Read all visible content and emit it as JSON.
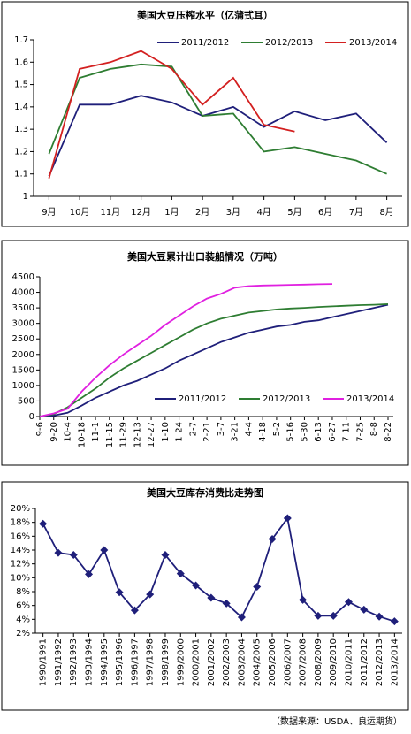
{
  "chart_data": [
    {
      "type": "line",
      "title": "美国大豆压榨水平（亿蒲式耳）",
      "categories": [
        "9月",
        "10月",
        "11月",
        "12月",
        "1月",
        "2月",
        "3月",
        "4月",
        "5月",
        "6月",
        "7月",
        "8月"
      ],
      "series": [
        {
          "name": "2011/2012",
          "color": "#1f1f7a",
          "values": [
            1.09,
            1.41,
            1.41,
            1.45,
            1.42,
            1.36,
            1.4,
            1.31,
            1.38,
            1.34,
            1.37,
            1.24
          ]
        },
        {
          "name": "2012/2013",
          "color": "#2e7d32",
          "values": [
            1.19,
            1.53,
            1.57,
            1.59,
            1.58,
            1.36,
            1.37,
            1.2,
            1.22,
            1.19,
            1.16,
            1.1
          ]
        },
        {
          "name": "2013/2014",
          "color": "#d32020",
          "values": [
            1.08,
            1.57,
            1.6,
            1.65,
            1.57,
            1.41,
            1.53,
            1.32,
            1.29,
            null,
            null,
            null
          ]
        }
      ],
      "ylim": [
        1,
        1.7
      ],
      "yticks": [
        1,
        1.1,
        1.2,
        1.3,
        1.4,
        1.5,
        1.6,
        1.7
      ],
      "legend": "top"
    },
    {
      "type": "line",
      "title": "美国大豆累计出口装船情况（万吨）",
      "categories": [
        "9-6",
        "9-20",
        "10-4",
        "10-18",
        "11-1",
        "11-15",
        "11-29",
        "12-13",
        "12-27",
        "1-10",
        "1-24",
        "2-7",
        "2-21",
        "3-7",
        "3-21",
        "4-4",
        "4-18",
        "5-2",
        "5-16",
        "5-30",
        "6-13",
        "6-27",
        "7-11",
        "7-25",
        "8-8",
        "8-22"
      ],
      "series": [
        {
          "name": "2011/2012",
          "color": "#1f1f7a",
          "values": [
            0,
            30,
            120,
            350,
            600,
            800,
            1000,
            1150,
            1350,
            1550,
            1800,
            2000,
            2200,
            2400,
            2550,
            2700,
            2800,
            2900,
            2950,
            3050,
            3100,
            3200,
            3300,
            3400,
            3500,
            3600
          ]
        },
        {
          "name": "2012/2013",
          "color": "#2e7d32",
          "values": [
            0,
            80,
            300,
            600,
            900,
            1250,
            1550,
            1800,
            2050,
            2300,
            2550,
            2800,
            3000,
            3150,
            3250,
            3350,
            3400,
            3450,
            3480,
            3500,
            3530,
            3550,
            3570,
            3590,
            3600,
            3620
          ]
        },
        {
          "name": "2013/2014",
          "color": "#e020e0",
          "values": [
            0,
            100,
            250,
            800,
            1250,
            1650,
            2000,
            2300,
            2600,
            2950,
            3250,
            3550,
            3800,
            3950,
            4150,
            4200,
            4220,
            4230,
            4240,
            4250,
            4260,
            4270,
            null,
            null,
            null,
            null
          ]
        }
      ],
      "ylim": [
        0,
        4500
      ],
      "yticks": [
        0,
        500,
        1000,
        1500,
        2000,
        2500,
        3000,
        3500,
        4000,
        4500
      ],
      "legend": "lower right"
    },
    {
      "type": "line",
      "title": "美国大豆库存消费比走势图",
      "categories": [
        "1990/1991",
        "1991/1992",
        "1992/1993",
        "1993/1994",
        "1994/1995",
        "1995/1996",
        "1996/1997",
        "1997/1998",
        "1998/1999",
        "1999/2000",
        "2000/2001",
        "2001/2002",
        "2002/2003",
        "2003/2004",
        "2004/2005",
        "2005/2006",
        "2006/2007",
        "2007/2008",
        "2008/2009",
        "2009/2010",
        "2010/2011",
        "2011/2012",
        "2012/2013",
        "2013/2014"
      ],
      "series": [
        {
          "color": "#1f1f7a",
          "marker": "diamond",
          "values": [
            17.8,
            13.6,
            13.3,
            10.5,
            14.0,
            7.9,
            5.3,
            7.6,
            13.3,
            10.6,
            8.9,
            7.1,
            6.3,
            4.3,
            8.7,
            15.6,
            18.6,
            6.8,
            4.5,
            4.5,
            6.5,
            5.4,
            4.4,
            3.7
          ]
        }
      ],
      "ylim": [
        2,
        20
      ],
      "yticks": [
        {
          "value": 2,
          "label": "2%"
        },
        {
          "value": 4,
          "label": "4%"
        },
        {
          "value": 6,
          "label": "6%"
        },
        {
          "value": 8,
          "label": "8%"
        },
        {
          "value": 10,
          "label": "10%"
        },
        {
          "value": 12,
          "label": "12%"
        },
        {
          "value": 14,
          "label": "14%"
        },
        {
          "value": 16,
          "label": "16%"
        },
        {
          "value": 18,
          "label": "18%"
        },
        {
          "value": 20,
          "label": "20%"
        }
      ]
    }
  ],
  "source": "（数据来源：USDA、良运期货）"
}
